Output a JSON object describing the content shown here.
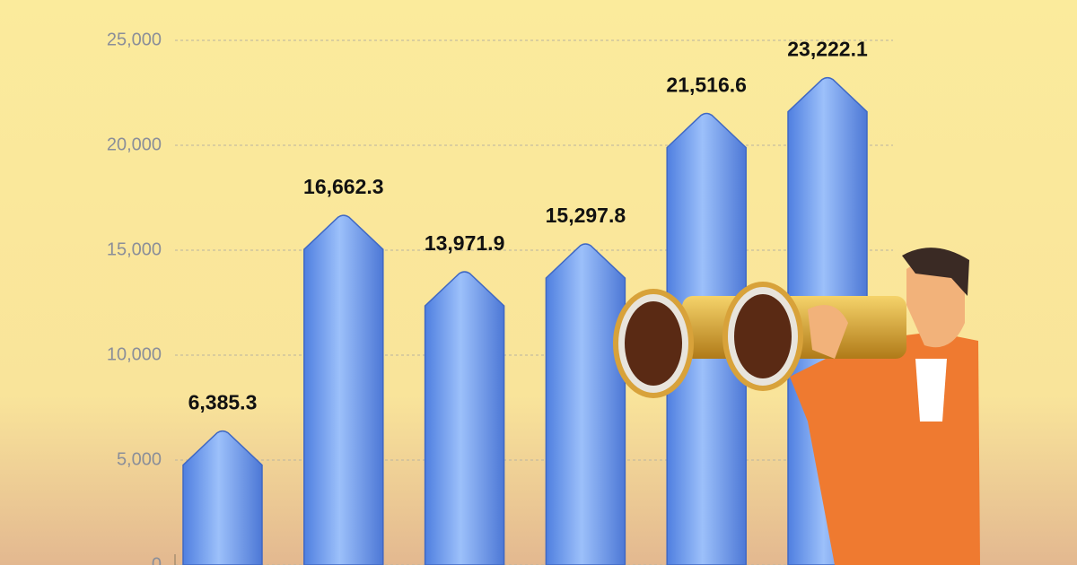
{
  "chart_data": {
    "type": "bar",
    "categories": [
      null,
      null,
      null,
      null,
      null,
      null
    ],
    "values": [
      6385.3,
      16662.3,
      13971.9,
      15297.8,
      21516.6,
      23222.1
    ],
    "value_labels": [
      "6,385.3",
      "16,662.3",
      "13,971.9",
      "15,297.8",
      "21,516.6",
      "23,222.1"
    ],
    "color": "#6f9cf0",
    "ylim": [
      0,
      25000
    ],
    "yticks": [
      0,
      {
        "value": 5000,
        "label": "5,000"
      },
      {
        "value": 10000,
        "label": "10,000"
      },
      {
        "value": 15000,
        "label": "15,000"
      },
      {
        "value": 20000,
        "label": "20,000"
      },
      {
        "value": 25000,
        "label": "25,000"
      }
    ],
    "grid": true
  }
}
